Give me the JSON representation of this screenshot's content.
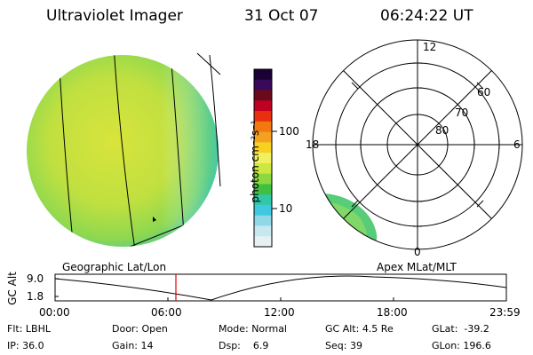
{
  "header": {
    "instrument": "Ultraviolet Imager",
    "date": "31 Oct 07",
    "time": "06:24:22 UT"
  },
  "colorbar": {
    "unit_label": "photon cm⁻²s⁻¹",
    "tick_labels": [
      "100",
      "10"
    ],
    "colors": [
      "#1a0033",
      "#3a0a5a",
      "#6a0a1a",
      "#c00020",
      "#e83010",
      "#f07a10",
      "#f4a020",
      "#f8d020",
      "#f0f060",
      "#cce840",
      "#8cd840",
      "#40c040",
      "#30c8a8",
      "#40c8e0",
      "#90d8e8",
      "#c8e8f0",
      "#e8f0f4"
    ]
  },
  "polar_plot": {
    "mlt_labels": {
      "top": "12",
      "left": "18",
      "right": "6",
      "bottom": "0"
    },
    "lat_labels": [
      "60",
      "70",
      "80"
    ]
  },
  "coord_labels": {
    "left": "Geographic Lat/Lon",
    "right": "Apex MLat/MLT"
  },
  "altitude_chart": {
    "axis_label": "GC Alt",
    "y_ticks": [
      "9.0",
      "1.8"
    ],
    "x_ticks": [
      "00:00",
      "06:00",
      "12:00",
      "18:00",
      "23:59"
    ],
    "marker_color": "#e00000"
  },
  "status": {
    "row1": [
      {
        "key": "Flt:",
        "value": "LBHL"
      },
      {
        "key": "Door:",
        "value": "Open"
      },
      {
        "key": "Mode:",
        "value": "Normal"
      },
      {
        "key": "GC Alt:",
        "value": "4.5 Re"
      },
      {
        "key": "GLat:",
        "value": "-39.2"
      }
    ],
    "row2": [
      {
        "key": "IP:",
        "value": "36.0"
      },
      {
        "key": "Gain:",
        "value": "14"
      },
      {
        "key": "Dsp:",
        "value": "6.9"
      },
      {
        "key": "Seq:",
        "value": "39"
      },
      {
        "key": "GLon:",
        "value": "196.6"
      }
    ]
  },
  "colors": {
    "disk_main": "#b8e048",
    "disk_yellow": "#d8e840",
    "disk_edge": "#40c8a0",
    "marker": "#e00000"
  }
}
